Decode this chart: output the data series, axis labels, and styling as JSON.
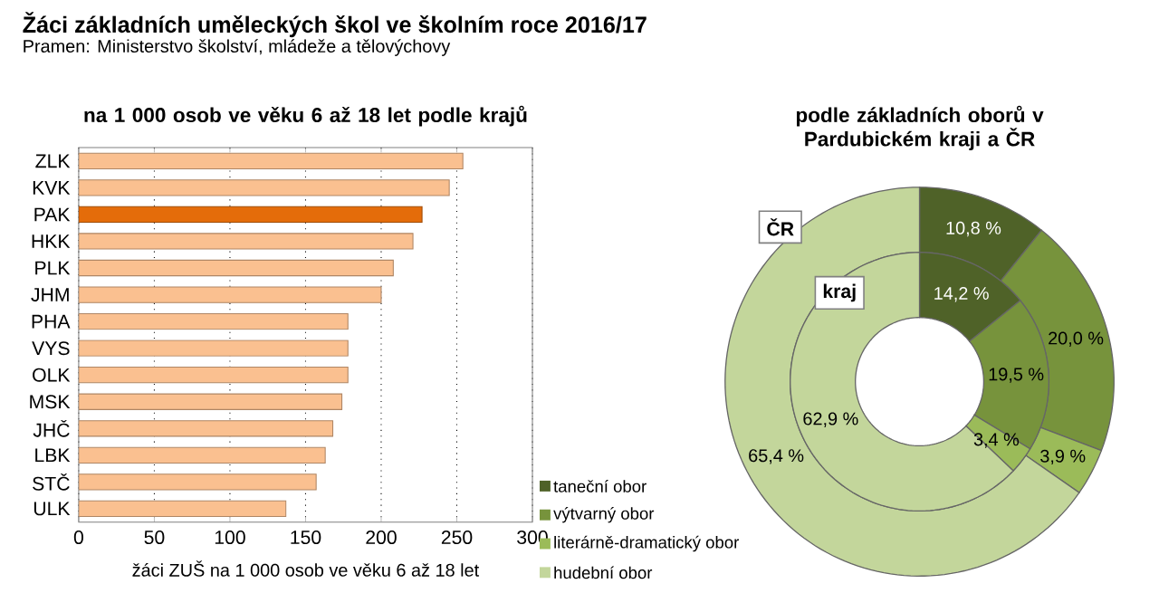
{
  "chart_data": [
    {
      "type": "other",
      "title": "Žáci základních uměleckých škol ve školním roce 2016/17",
      "subtitle": "Pramen: Ministerstvo školství, mládeže a tělovýchovy"
    },
    {
      "type": "bar",
      "orientation": "horizontal",
      "title": "na 1 000 osob ve věku 6 až 18 let podle krajů",
      "xlabel": "žáci ZUŠ na 1 000 osob ve věku 6 až 18 let",
      "categories": [
        "ZLK",
        "KVK",
        "PAK",
        "HKK",
        "PLK",
        "JHM",
        "PHA",
        "VYS",
        "OLK",
        "MSK",
        "JHČ",
        "LBK",
        "STČ",
        "ULK"
      ],
      "values": [
        254,
        245,
        227,
        221,
        208,
        200,
        178,
        178,
        178,
        174,
        168,
        163,
        157,
        137
      ],
      "colors": [
        "#fac090",
        "#fac090",
        "#e46c0a",
        "#fac090",
        "#fac090",
        "#fac090",
        "#fac090",
        "#fac090",
        "#fac090",
        "#fac090",
        "#fac090",
        "#fac090",
        "#fac090",
        "#fac090"
      ],
      "xlim": [
        0,
        300
      ],
      "xticks": [
        0,
        50,
        100,
        150,
        200,
        250,
        300
      ],
      "grid": "x"
    },
    {
      "type": "donut",
      "title": "podle základních oborů v Pardubickém kraji a ČR",
      "categories": [
        "taneční obor",
        "výtvarný obor",
        "literárně-dramatický obor",
        "hudební obor"
      ],
      "colors": [
        "#4f6228",
        "#77933c",
        "#9bbb59",
        "#c3d69b"
      ],
      "series": [
        {
          "name": "ČR",
          "values": [
            10.8,
            20.0,
            3.9,
            65.4
          ],
          "value_labels": [
            "10,8 %",
            "20,0 %",
            "3,9 %",
            "65,4 %"
          ]
        },
        {
          "name": "kraj",
          "values": [
            14.2,
            19.5,
            3.4,
            62.9
          ],
          "value_labels": [
            "14,2 %",
            "19,5 %",
            "3,4 %",
            "62,9 %"
          ]
        }
      ],
      "legend": "bottom left"
    }
  ]
}
